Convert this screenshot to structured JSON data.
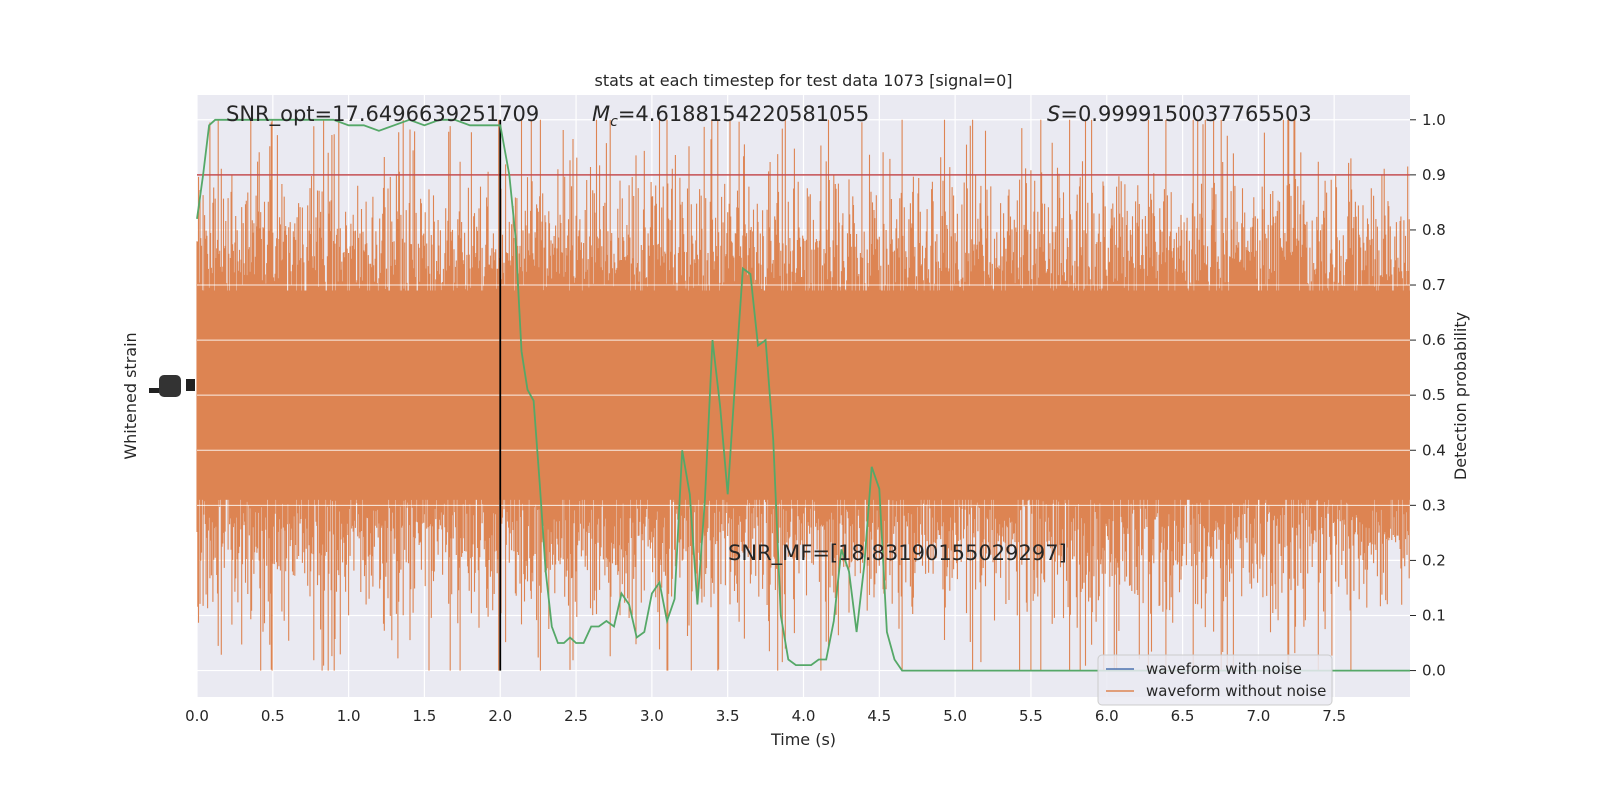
{
  "chart_data": {
    "type": "line",
    "title": "stats at each timestep for test data 1073 [signal=0]",
    "xlabel": "Time (s)",
    "ylabel_left": "Whitened strain",
    "ylabel_right": "Detection probability",
    "xlim": [
      0.0,
      8.0
    ],
    "ylim_right": [
      -0.048,
      1.045
    ],
    "x_ticks": [
      "0.0",
      "0.5",
      "1.0",
      "1.5",
      "2.0",
      "2.5",
      "3.0",
      "3.5",
      "4.0",
      "4.5",
      "5.0",
      "5.5",
      "6.0",
      "6.5",
      "7.0",
      "7.5"
    ],
    "x_tick_values": [
      0.0,
      0.5,
      1.0,
      1.5,
      2.0,
      2.5,
      3.0,
      3.5,
      4.0,
      4.5,
      5.0,
      5.5,
      6.0,
      6.5,
      7.0,
      7.5
    ],
    "y_ticks_right": [
      "0.0",
      "0.1",
      "0.2",
      "0.3",
      "0.4",
      "0.5",
      "0.6",
      "0.7",
      "0.8",
      "0.9",
      "1.0"
    ],
    "y_tick_values_right": [
      0.0,
      0.1,
      0.2,
      0.3,
      0.4,
      0.5,
      0.6,
      0.7,
      0.8,
      0.9,
      1.0
    ],
    "grid": true,
    "legend_position": "lower-right",
    "annotations": {
      "snr_opt": "SNR_opt=17.6496639251709",
      "mc_symbol": "M",
      "mc_sub": "c",
      "mc_value": "=4.6188154220581055",
      "s_symbol": "S",
      "s_value": "=0.9999150037765503",
      "snr_mf": "SNR_MF=[18.83190155029297]"
    },
    "series": [
      {
        "name": "waveform with noise",
        "color": "#4c72b0",
        "style": "line"
      },
      {
        "name": "waveform without noise",
        "color": "#dd8452",
        "style": "dense noise band, centred near 0.5, spikes roughly 0.0 to 1.0"
      },
      {
        "color": "#55a868",
        "x": [
          0.0,
          0.04,
          0.08,
          0.12,
          0.16,
          0.2,
          0.3,
          0.4,
          0.5,
          0.6,
          0.7,
          0.8,
          0.9,
          1.0,
          1.1,
          1.2,
          1.3,
          1.4,
          1.5,
          1.6,
          1.7,
          1.8,
          1.9,
          2.0,
          2.06,
          2.1,
          2.14,
          2.18,
          2.22,
          2.26,
          2.3,
          2.34,
          2.38,
          2.42,
          2.46,
          2.5,
          2.55,
          2.6,
          2.65,
          2.7,
          2.75,
          2.8,
          2.85,
          2.9,
          2.95,
          3.0,
          3.05,
          3.1,
          3.15,
          3.2,
          3.25,
          3.3,
          3.35,
          3.4,
          3.45,
          3.5,
          3.55,
          3.6,
          3.65,
          3.7,
          3.75,
          3.8,
          3.85,
          3.9,
          3.95,
          4.0,
          4.05,
          4.1,
          4.15,
          4.2,
          4.25,
          4.3,
          4.35,
          4.4,
          4.45,
          4.5,
          4.55,
          4.6,
          4.65,
          4.7,
          4.75,
          4.8,
          4.85,
          4.9,
          4.95,
          5.0,
          5.05,
          5.1,
          5.15,
          5.2,
          5.25,
          5.3,
          5.35,
          5.4,
          5.45,
          5.5,
          5.6,
          5.7,
          5.8,
          5.9,
          6.0,
          6.2,
          6.4,
          6.6,
          6.8,
          7.0,
          7.2,
          7.4,
          7.5,
          7.55,
          7.6,
          7.7,
          7.8,
          7.9,
          8.0
        ],
        "y": [
          0.82,
          0.9,
          0.99,
          1.0,
          1.0,
          1.0,
          1.0,
          1.0,
          1.0,
          1.0,
          1.0,
          1.0,
          1.0,
          0.99,
          0.99,
          0.98,
          0.99,
          1.0,
          0.99,
          1.0,
          1.0,
          0.99,
          0.99,
          0.99,
          0.9,
          0.79,
          0.58,
          0.51,
          0.49,
          0.34,
          0.18,
          0.08,
          0.05,
          0.05,
          0.06,
          0.05,
          0.05,
          0.08,
          0.08,
          0.09,
          0.08,
          0.14,
          0.12,
          0.06,
          0.07,
          0.14,
          0.16,
          0.09,
          0.13,
          0.4,
          0.32,
          0.12,
          0.31,
          0.6,
          0.48,
          0.32,
          0.53,
          0.73,
          0.72,
          0.59,
          0.6,
          0.42,
          0.1,
          0.02,
          0.01,
          0.01,
          0.01,
          0.02,
          0.02,
          0.09,
          0.22,
          0.18,
          0.07,
          0.19,
          0.37,
          0.33,
          0.07,
          0.02,
          0.0,
          0.0,
          0.0,
          0.0,
          0.0,
          0.0,
          0.0,
          0.0,
          0.0,
          0.0,
          0.0,
          0.0,
          0.0,
          0.0,
          0.0,
          0.0,
          0.0,
          0.0,
          0.0,
          0.0,
          0.0,
          0.0,
          0.0,
          0.0,
          0.0,
          0.0,
          0.0,
          0.0,
          0.0,
          0.0,
          0.0,
          0.0,
          0.0,
          0.0,
          0.0,
          0.0,
          0.0
        ]
      },
      {
        "color": "#c44e52",
        "style": "horizontal threshold line",
        "y": 0.9
      },
      {
        "color": "#000000",
        "style": "vertical marker line",
        "x": 2.0
      }
    ]
  }
}
